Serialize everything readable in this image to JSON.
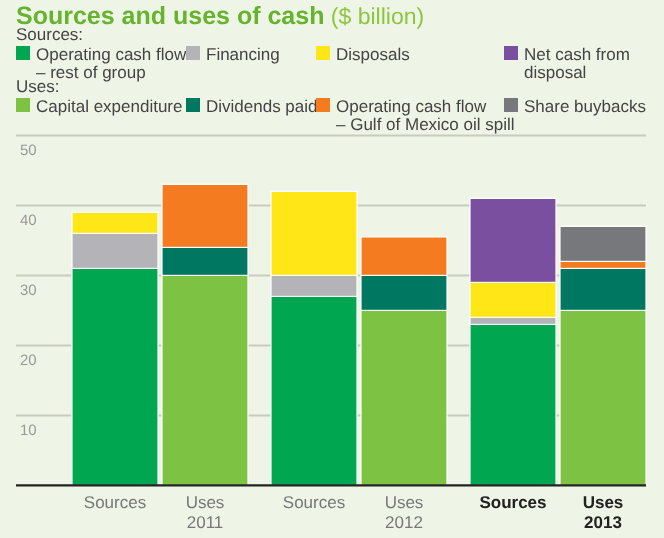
{
  "chart_data": {
    "type": "bar",
    "stacked": true,
    "title": "Sources and uses of cash",
    "subtitle": "($ billion)",
    "annotations": [
      "Sources:",
      "Uses:"
    ],
    "categories": [
      "Sources",
      "Uses\n2011",
      "Sources",
      "Uses\n2012",
      "Sources",
      "Uses\n2013"
    ],
    "series": [
      {
        "name": "Operating cash flow\n– rest of group",
        "color": "#00a650",
        "values": [
          31,
          null,
          27,
          null,
          23,
          null
        ]
      },
      {
        "name": "Financing",
        "color": "#b3b3b8",
        "values": [
          5,
          null,
          3,
          null,
          1,
          null
        ]
      },
      {
        "name": "Disposals",
        "color": "#ffe617",
        "values": [
          3,
          null,
          12,
          null,
          5,
          null
        ]
      },
      {
        "name": "Net cash from\ndisposal",
        "color": "#7a4fa0",
        "values": [
          null,
          null,
          null,
          null,
          12,
          null
        ]
      },
      {
        "name": "Capital expenditure",
        "color": "#7dc242",
        "values": [
          null,
          30,
          null,
          25,
          null,
          25
        ]
      },
      {
        "name": "Dividends paid",
        "color": "#007761",
        "values": [
          null,
          4,
          null,
          5,
          null,
          6
        ]
      },
      {
        "name": "Operating cash flow\n– Gulf of Mexico oil spill",
        "color": "#f47b20",
        "values": [
          null,
          9,
          null,
          5.5,
          null,
          1
        ]
      },
      {
        "name": "Share buybacks",
        "color": "#77787b",
        "values": [
          null,
          null,
          null,
          null,
          null,
          5
        ]
      }
    ],
    "ylim": [
      0,
      50
    ],
    "yticks": [
      10,
      20,
      30,
      40,
      50
    ],
    "grid": "y",
    "legend": "top"
  }
}
